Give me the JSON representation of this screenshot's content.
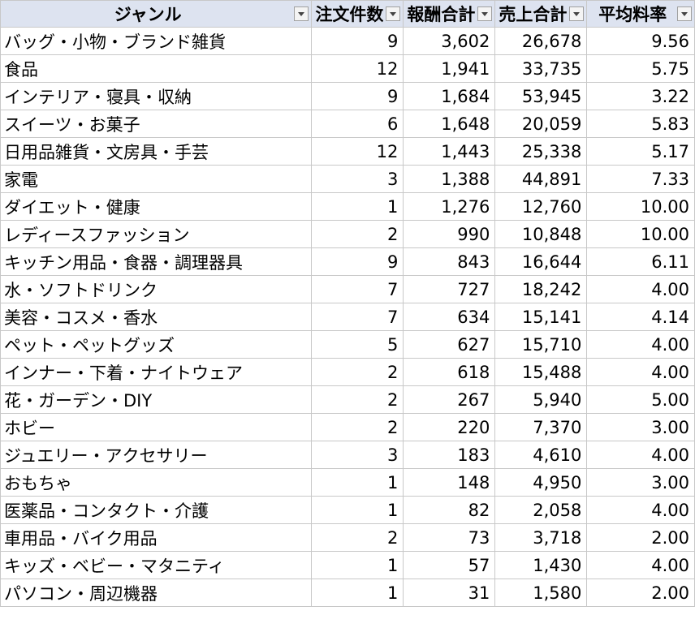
{
  "table": {
    "headers": [
      "ジャンル",
      "注文件数",
      "報酬合計",
      "売上合計",
      "平均料率"
    ],
    "rows": [
      [
        "バッグ・小物・ブランド雑貨",
        "9",
        "3,602",
        "26,678",
        "9.56"
      ],
      [
        "食品",
        "12",
        "1,941",
        "33,735",
        "5.75"
      ],
      [
        "インテリア・寝具・収納",
        "9",
        "1,684",
        "53,945",
        "3.22"
      ],
      [
        "スイーツ・お菓子",
        "6",
        "1,648",
        "20,059",
        "5.83"
      ],
      [
        "日用品雑貨・文房具・手芸",
        "12",
        "1,443",
        "25,338",
        "5.17"
      ],
      [
        "家電",
        "3",
        "1,388",
        "44,891",
        "7.33"
      ],
      [
        "ダイエット・健康",
        "1",
        "1,276",
        "12,760",
        "10.00"
      ],
      [
        "レディースファッション",
        "2",
        "990",
        "10,848",
        "10.00"
      ],
      [
        "キッチン用品・食器・調理器具",
        "9",
        "843",
        "16,644",
        "6.11"
      ],
      [
        "水・ソフトドリンク",
        "7",
        "727",
        "18,242",
        "4.00"
      ],
      [
        "美容・コスメ・香水",
        "7",
        "634",
        "15,141",
        "4.14"
      ],
      [
        "ペット・ペットグッズ",
        "5",
        "627",
        "15,710",
        "4.00"
      ],
      [
        "インナー・下着・ナイトウェア",
        "2",
        "618",
        "15,488",
        "4.00"
      ],
      [
        "花・ガーデン・DIY",
        "2",
        "267",
        "5,940",
        "5.00"
      ],
      [
        "ホビー",
        "2",
        "220",
        "7,370",
        "3.00"
      ],
      [
        "ジュエリー・アクセサリー",
        "3",
        "183",
        "4,610",
        "4.00"
      ],
      [
        "おもちゃ",
        "1",
        "148",
        "4,950",
        "3.00"
      ],
      [
        "医薬品・コンタクト・介護",
        "1",
        "82",
        "2,058",
        "4.00"
      ],
      [
        "車用品・バイク用品",
        "2",
        "73",
        "3,718",
        "2.00"
      ],
      [
        "キッズ・ベビー・マタニティ",
        "1",
        "57",
        "1,430",
        "4.00"
      ],
      [
        "パソコン・周辺機器",
        "1",
        "31",
        "1,580",
        "2.00"
      ]
    ]
  }
}
